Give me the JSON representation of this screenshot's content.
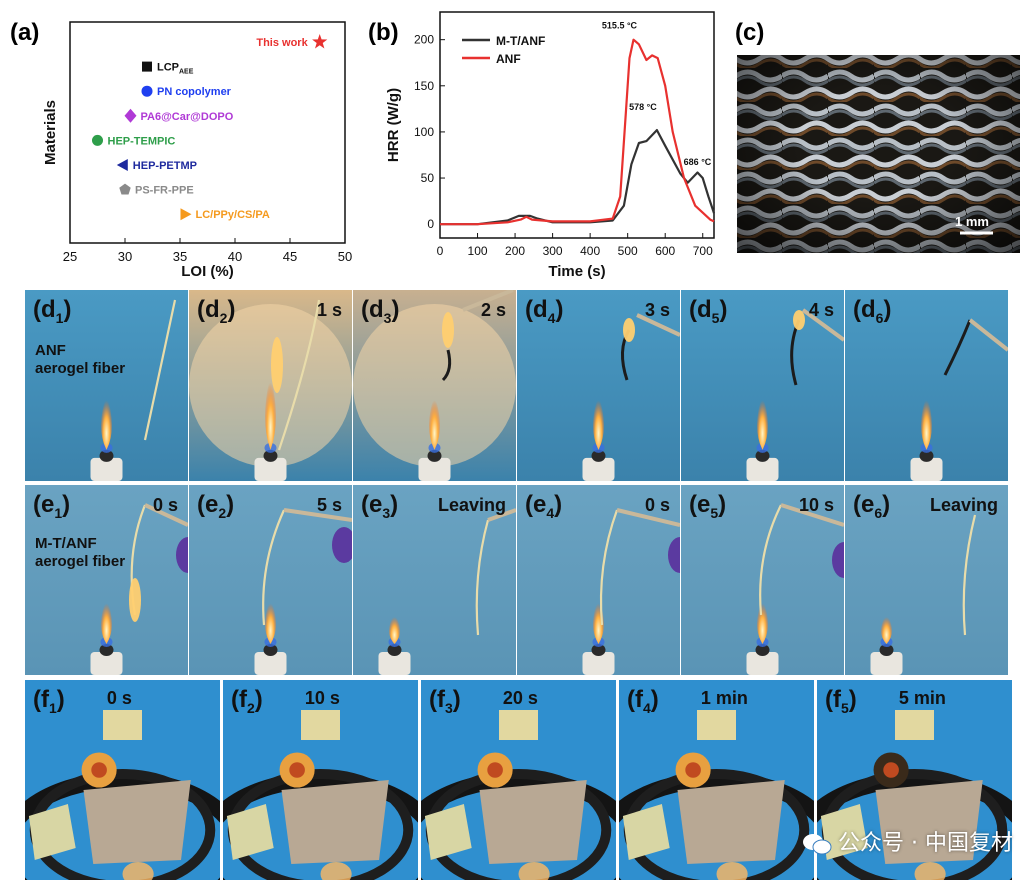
{
  "panels": {
    "a": "(a)",
    "b": "(b)",
    "c": "(c)"
  },
  "chart_data": [
    {
      "type": "scatter",
      "panel": "(a)",
      "title": "",
      "xlabel": "LOI (%)",
      "ylabel": "Materials",
      "xlim": [
        25,
        50
      ],
      "xticks": [
        "25",
        "30",
        "35",
        "40",
        "45",
        "50"
      ],
      "points": [
        {
          "label": "This work",
          "x": 47.7,
          "rank": 1,
          "marker": "star",
          "color": "#e8312f"
        },
        {
          "label": "LCP",
          "label_sub": "AEE",
          "x": 32.0,
          "rank": 2,
          "marker": "square",
          "color": "#111111"
        },
        {
          "label": "PN copolymer",
          "x": 32.0,
          "rank": 3,
          "marker": "circle",
          "color": "#1f3ff0"
        },
        {
          "label": "PA6@Car@DOPO",
          "x": 30.5,
          "rank": 4,
          "marker": "diamond",
          "color": "#b03ad6"
        },
        {
          "label": "HEP-TEMPIC",
          "x": 27.5,
          "rank": 5,
          "marker": "circle",
          "color": "#2e9e4a"
        },
        {
          "label": "HEP-PETMP",
          "x": 29.8,
          "rank": 6,
          "marker": "triangle-left",
          "color": "#1e2a9e"
        },
        {
          "label": "PS-FR-PPE",
          "x": 30.0,
          "rank": 7,
          "marker": "pentagon",
          "color": "#8a8a8a"
        },
        {
          "label": "LC/PPy/CS/PA",
          "x": 35.5,
          "rank": 8,
          "marker": "triangle-right",
          "color": "#f59a1e"
        }
      ]
    },
    {
      "type": "line",
      "panel": "(b)",
      "xlabel": "Time (s)",
      "ylabel": "HRR (W/g)",
      "xlim": [
        0,
        730
      ],
      "ylim": [
        -15,
        230
      ],
      "xticks": [
        0,
        100,
        200,
        300,
        400,
        500,
        600,
        700
      ],
      "yticks": [
        0,
        50,
        100,
        150,
        200
      ],
      "series": [
        {
          "name": "M-T/ANF",
          "color": "#333333",
          "x": [
            0,
            100,
            180,
            210,
            240,
            260,
            300,
            400,
            460,
            490,
            510,
            530,
            550,
            578,
            600,
            640,
            660,
            686,
            700,
            715,
            730
          ],
          "y": [
            0,
            0,
            4,
            9,
            9,
            6,
            2,
            2,
            4,
            20,
            65,
            88,
            90,
            102,
            85,
            55,
            45,
            56,
            50,
            30,
            12
          ]
        },
        {
          "name": "ANF",
          "color": "#e8312f",
          "x": [
            0,
            100,
            180,
            215,
            230,
            245,
            300,
            400,
            460,
            480,
            495,
            505,
            515.5,
            530,
            550,
            565,
            580,
            600,
            620,
            650,
            680,
            720,
            730
          ],
          "y": [
            0,
            0,
            2,
            5,
            8,
            5,
            3,
            3,
            6,
            30,
            120,
            180,
            200,
            195,
            178,
            183,
            180,
            150,
            100,
            50,
            20,
            5,
            3
          ]
        }
      ],
      "annotations": [
        {
          "text": "515.5 °C",
          "x": 515.5,
          "y": 212
        },
        {
          "text": "578 °C",
          "x": 578,
          "y": 124
        },
        {
          "text": "686 °C",
          "x": 686,
          "y": 64
        }
      ]
    }
  ],
  "scale_bar": "1 mm",
  "row_d": [
    {
      "letter": "d",
      "sub": "1",
      "time": "",
      "desc": [
        "ANF",
        "aerogel  fiber"
      ]
    },
    {
      "letter": "d",
      "sub": "2",
      "time": "1 s"
    },
    {
      "letter": "d",
      "sub": "3",
      "time": "2 s"
    },
    {
      "letter": "d",
      "sub": "4",
      "time": "3 s"
    },
    {
      "letter": "d",
      "sub": "5",
      "time": "4 s"
    },
    {
      "letter": "d",
      "sub": "6",
      "time": ""
    }
  ],
  "row_e": [
    {
      "letter": "e",
      "sub": "1",
      "time": "0 s",
      "desc": [
        "M-T/ANF",
        "aerogel  fiber"
      ]
    },
    {
      "letter": "e",
      "sub": "2",
      "time": "5 s"
    },
    {
      "letter": "e",
      "sub": "3",
      "time": "Leaving"
    },
    {
      "letter": "e",
      "sub": "4",
      "time": "0 s"
    },
    {
      "letter": "e",
      "sub": "5",
      "time": "10 s"
    },
    {
      "letter": "e",
      "sub": "6",
      "time": "Leaving"
    }
  ],
  "row_f": [
    {
      "letter": "f",
      "sub": "1",
      "time": "0 s"
    },
    {
      "letter": "f",
      "sub": "2",
      "time": "10 s"
    },
    {
      "letter": "f",
      "sub": "3",
      "time": "20 s"
    },
    {
      "letter": "f",
      "sub": "4",
      "time": "1 min"
    },
    {
      "letter": "f",
      "sub": "5",
      "time": "5 min"
    }
  ],
  "watermark": "公众号 · 中国复材"
}
